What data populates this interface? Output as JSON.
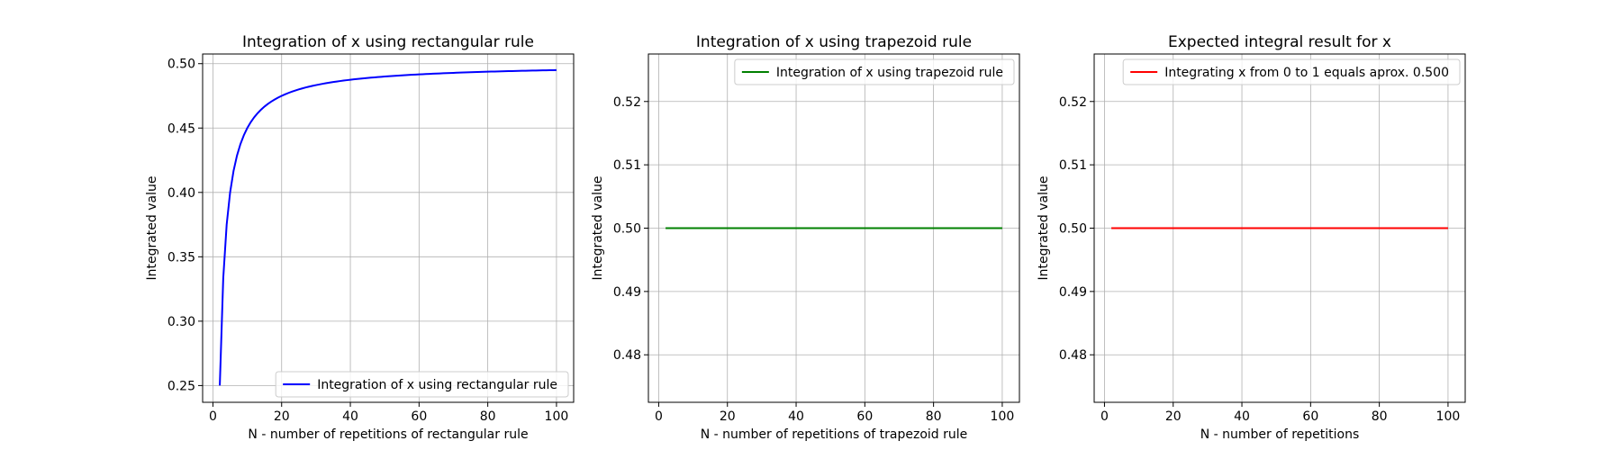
{
  "chart_data": [
    {
      "type": "line",
      "title": "Integration of x using rectangular rule",
      "xlabel": "N - number of repetitions of rectangular rule",
      "ylabel": "Integrated value",
      "xlim": [
        -3,
        105
      ],
      "ylim": [
        0.237,
        0.5075
      ],
      "xticks": [
        "0",
        "20",
        "40",
        "60",
        "80",
        "100"
      ],
      "xtick_values": [
        0,
        20,
        40,
        60,
        80,
        100
      ],
      "yticks": [
        "0.25",
        "0.30",
        "0.35",
        "0.40",
        "0.45",
        "0.50"
      ],
      "ytick_values": [
        0.25,
        0.3,
        0.35,
        0.4,
        0.45,
        0.5
      ],
      "grid": true,
      "legend_position": "lower-right",
      "series": [
        {
          "name": "Integration of x using rectangular rule",
          "color": "#0000ff",
          "formula": "0.5 - 0.5/N",
          "x_range": [
            2,
            100
          ]
        }
      ]
    },
    {
      "type": "line",
      "title": "Integration of x using trapezoid rule",
      "xlabel": "N - number of repetitions of trapezoid rule",
      "ylabel": "Integrated value",
      "xlim": [
        -3,
        105
      ],
      "ylim": [
        0.4725,
        0.5275
      ],
      "xticks": [
        "0",
        "20",
        "40",
        "60",
        "80",
        "100"
      ],
      "xtick_values": [
        0,
        20,
        40,
        60,
        80,
        100
      ],
      "yticks": [
        "0.48",
        "0.49",
        "0.50",
        "0.51",
        "0.52"
      ],
      "ytick_values": [
        0.48,
        0.49,
        0.5,
        0.51,
        0.52
      ],
      "grid": true,
      "legend_position": "upper-right",
      "series": [
        {
          "name": "Integration of x using trapezoid rule",
          "color": "#008000",
          "formula": "0.5",
          "x_range": [
            2,
            100
          ]
        }
      ]
    },
    {
      "type": "line",
      "title": "Expected integral result for x",
      "xlabel": "N - number of repetitions",
      "ylabel": "Integrated value",
      "xlim": [
        -3,
        105
      ],
      "ylim": [
        0.4725,
        0.5275
      ],
      "xticks": [
        "0",
        "20",
        "40",
        "60",
        "80",
        "100"
      ],
      "xtick_values": [
        0,
        20,
        40,
        60,
        80,
        100
      ],
      "yticks": [
        "0.48",
        "0.49",
        "0.50",
        "0.51",
        "0.52"
      ],
      "ytick_values": [
        0.48,
        0.49,
        0.5,
        0.51,
        0.52
      ],
      "grid": true,
      "legend_position": "upper-right",
      "series": [
        {
          "name": "Integrating x from 0 to 1 equals aprox. 0.500",
          "color": "#ff0000",
          "formula": "0.5",
          "x_range": [
            2,
            100
          ]
        }
      ]
    }
  ]
}
